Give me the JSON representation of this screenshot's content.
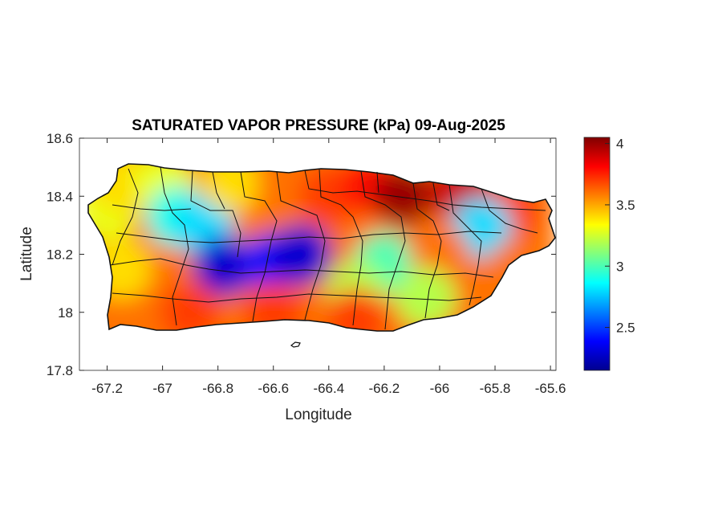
{
  "chart_data": {
    "type": "heatmap",
    "title": "SATURATED VAPOR PRESSURE (kPa) 09-Aug-2025",
    "xlabel": "Longitude",
    "ylabel": "Latitude",
    "xlim": [
      -67.3,
      -65.58
    ],
    "ylim": [
      17.8,
      18.6
    ],
    "x_ticks": [
      -67.2,
      -67,
      -66.8,
      -66.6,
      -66.4,
      -66.2,
      -66,
      -65.8,
      -65.6
    ],
    "y_ticks": [
      17.8,
      18,
      18.2,
      18.4,
      18.6
    ],
    "colorbar": {
      "colormap": "jet",
      "min": 2.15,
      "max": 4.05,
      "ticks": [
        2.5,
        3,
        3.5,
        4
      ]
    },
    "grid": false,
    "region_samples": [
      {
        "lon": -67.2,
        "lat": 18.35,
        "value": 3.3
      },
      {
        "lon": -67.15,
        "lat": 18.45,
        "value": 3.4
      },
      {
        "lon": -67.0,
        "lat": 18.45,
        "value": 3.3
      },
      {
        "lon": -66.95,
        "lat": 18.33,
        "value": 2.9
      },
      {
        "lon": -66.85,
        "lat": 18.3,
        "value": 2.8
      },
      {
        "lon": -66.78,
        "lat": 18.16,
        "value": 2.3
      },
      {
        "lon": -66.6,
        "lat": 18.17,
        "value": 2.4
      },
      {
        "lon": -66.5,
        "lat": 18.2,
        "value": 2.3
      },
      {
        "lon": -66.75,
        "lat": 18.45,
        "value": 3.4
      },
      {
        "lon": -66.55,
        "lat": 18.45,
        "value": 3.6
      },
      {
        "lon": -66.4,
        "lat": 18.4,
        "value": 3.7
      },
      {
        "lon": -66.25,
        "lat": 18.44,
        "value": 3.8
      },
      {
        "lon": -66.13,
        "lat": 18.4,
        "value": 4.0
      },
      {
        "lon": -65.93,
        "lat": 18.42,
        "value": 3.9
      },
      {
        "lon": -65.75,
        "lat": 18.35,
        "value": 3.7
      },
      {
        "lon": -65.85,
        "lat": 18.29,
        "value": 2.8
      },
      {
        "lon": -66.2,
        "lat": 18.17,
        "value": 3.0
      },
      {
        "lon": -66.0,
        "lat": 18.2,
        "value": 3.6
      },
      {
        "lon": -65.72,
        "lat": 18.15,
        "value": 3.6
      },
      {
        "lon": -66.3,
        "lat": 18.07,
        "value": 3.2
      },
      {
        "lon": -66.05,
        "lat": 18.05,
        "value": 3.2
      },
      {
        "lon": -66.9,
        "lat": 18.0,
        "value": 3.7
      },
      {
        "lon": -66.6,
        "lat": 18.0,
        "value": 3.7
      },
      {
        "lon": -66.3,
        "lat": 17.98,
        "value": 3.7
      },
      {
        "lon": -67.15,
        "lat": 18.0,
        "value": 3.6
      },
      {
        "lon": -67.15,
        "lat": 18.15,
        "value": 3.4
      }
    ]
  }
}
